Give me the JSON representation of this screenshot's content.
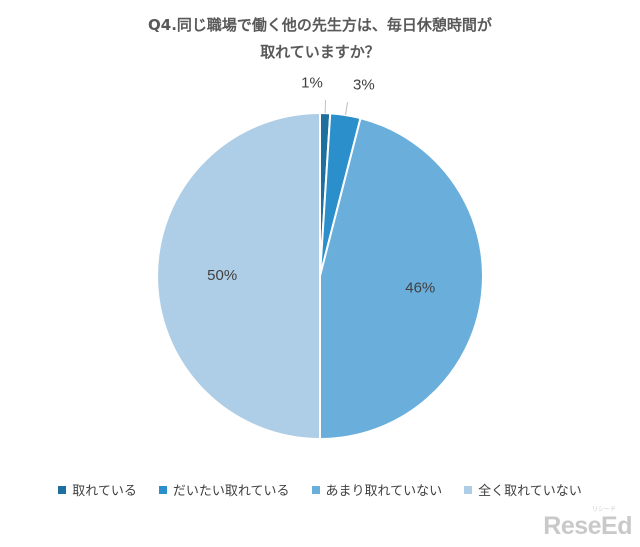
{
  "chart_data": {
    "type": "pie",
    "title_lines": [
      "Q4.同じ職場で働く他の先生方は、毎日休憩時間が",
      "取れていますか？"
    ],
    "categories": [
      "取れている",
      "だいたい取れている",
      "あまり取れていない",
      "全く取れていない"
    ],
    "values": [
      1,
      3,
      46,
      50
    ],
    "labels": [
      "1%",
      "3%",
      "46%",
      "50%"
    ],
    "colors": [
      "#1f6f9e",
      "#2b8fcb",
      "#6aaedb",
      "#aecde6"
    ],
    "legend_position": "bottom"
  },
  "watermark": {
    "text": "ReseEd",
    "sub": "リシード"
  }
}
